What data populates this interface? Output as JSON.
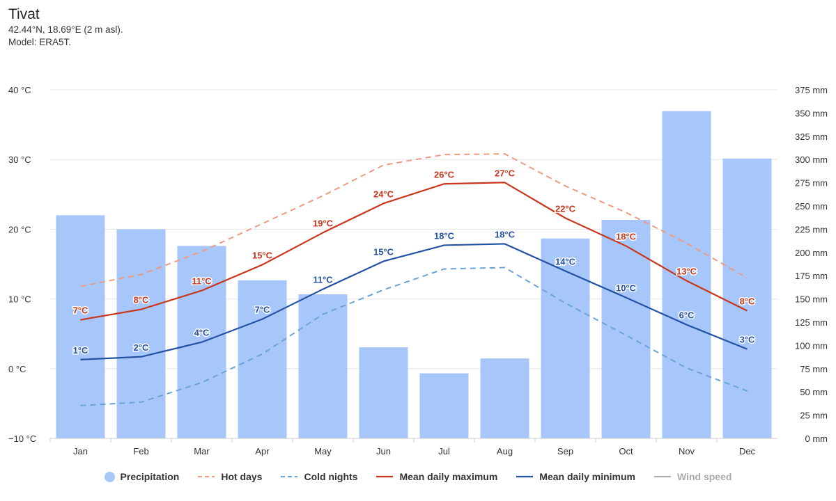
{
  "header": {
    "title": "Tivat",
    "location": "42.44°N, 18.69°E (2 m asl).",
    "model": "Model: ERA5T."
  },
  "colors": {
    "precipitation": "#a7c7fb",
    "hot_days": "#ef9a7f",
    "cold_nights": "#6aa3d8",
    "mean_max": "#c9361b",
    "mean_min": "#2351a3",
    "wind_speed": "#aaaaaa"
  },
  "chart_data": {
    "type": "bar+line",
    "categories": [
      "Jan",
      "Feb",
      "Mar",
      "Apr",
      "May",
      "Jun",
      "Jul",
      "Aug",
      "Sep",
      "Oct",
      "Nov",
      "Dec"
    ],
    "y_left": {
      "unit": "°C",
      "min": -10,
      "max": 40,
      "ticks": [
        "40 °C",
        "30 °C",
        "20 °C",
        "10 °C",
        "0 °C",
        "−10 °C"
      ],
      "tick_values": [
        40,
        30,
        20,
        10,
        0,
        -10
      ]
    },
    "y_right": {
      "unit": "mm",
      "min": 0,
      "max": 375,
      "ticks": [
        "375 mm",
        "350 mm",
        "325 mm",
        "300 mm",
        "275 mm",
        "250 mm",
        "225 mm",
        "200 mm",
        "175 mm",
        "150 mm",
        "125 mm",
        "100 mm",
        "75 mm",
        "50 mm",
        "25 mm",
        "0 mm"
      ],
      "tick_values": [
        375,
        350,
        325,
        300,
        275,
        250,
        225,
        200,
        175,
        150,
        125,
        100,
        75,
        50,
        25,
        0
      ]
    },
    "series": [
      {
        "name": "Precipitation",
        "type": "bar",
        "axis": "right",
        "values": [
          240,
          225,
          207,
          170,
          155,
          98,
          70,
          86,
          215,
          235,
          352,
          301
        ]
      },
      {
        "name": "Hot days",
        "type": "line",
        "dash": true,
        "axis": "left",
        "values": [
          11.8,
          13.5,
          16.8,
          20.8,
          24.8,
          29.2,
          30.7,
          30.8,
          26.2,
          22.4,
          18.0,
          13.0
        ]
      },
      {
        "name": "Cold nights",
        "type": "line",
        "dash": true,
        "axis": "left",
        "values": [
          -5.3,
          -4.8,
          -2.0,
          2.1,
          7.8,
          11.3,
          14.3,
          14.5,
          9.4,
          4.8,
          0.1,
          -3.2
        ]
      },
      {
        "name": "Mean daily maximum",
        "type": "line",
        "axis": "left",
        "values": [
          7.0,
          8.5,
          11.2,
          14.9,
          19.5,
          23.7,
          26.5,
          26.7,
          21.6,
          17.6,
          12.6,
          8.3
        ],
        "labels": [
          "7°C",
          "8°C",
          "11°C",
          "15°C",
          "19°C",
          "24°C",
          "26°C",
          "27°C",
          "22°C",
          "18°C",
          "13°C",
          "8°C"
        ]
      },
      {
        "name": "Mean daily minimum",
        "type": "line",
        "axis": "left",
        "values": [
          1.3,
          1.7,
          3.8,
          7.1,
          11.4,
          15.4,
          17.7,
          17.9,
          14.0,
          10.2,
          6.3,
          2.8
        ],
        "labels": [
          "1°C",
          "2°C",
          "4°C",
          "7°C",
          "11°C",
          "15°C",
          "18°C",
          "18°C",
          "14°C",
          "10°C",
          "6°C",
          "3°C"
        ]
      }
    ],
    "legend": {
      "position": "bottom-center",
      "items": [
        {
          "label": "Precipitation",
          "enabled": true
        },
        {
          "label": "Hot days",
          "enabled": true
        },
        {
          "label": "Cold nights",
          "enabled": true
        },
        {
          "label": "Mean daily maximum",
          "enabled": true
        },
        {
          "label": "Mean daily minimum",
          "enabled": true
        },
        {
          "label": "Wind speed",
          "enabled": false
        }
      ]
    },
    "grid": true
  }
}
